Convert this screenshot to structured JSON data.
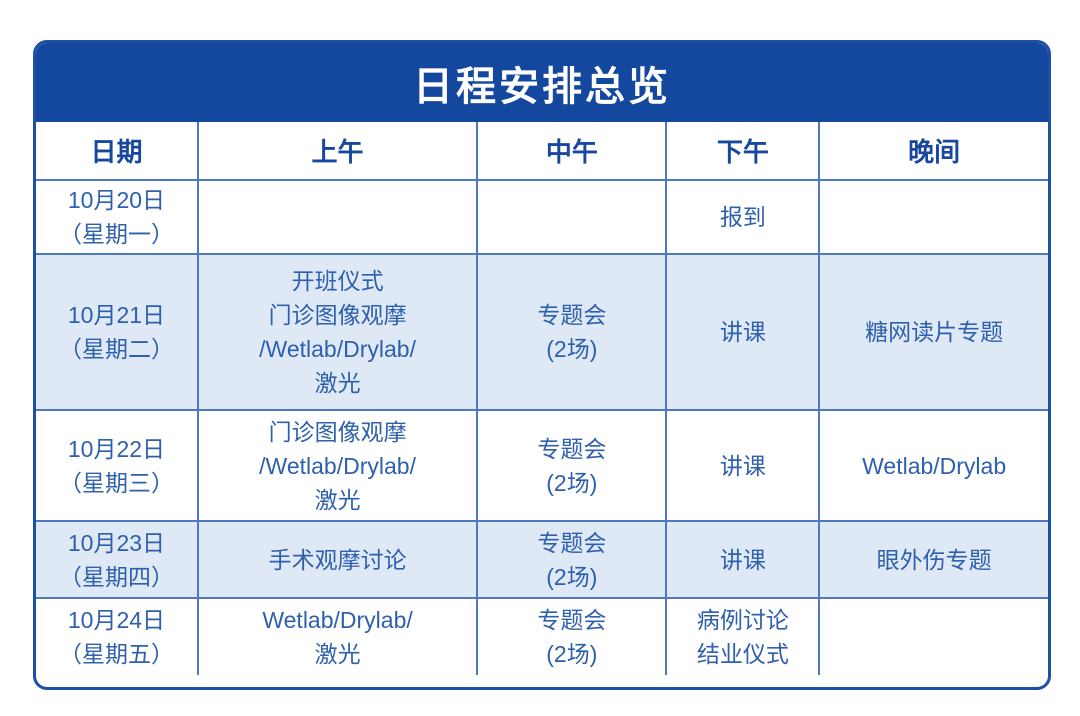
{
  "title": "日程安排总览",
  "colors": {
    "title_bar": "#13489e",
    "outer_border": "#1d4fa4",
    "grid_line": "#4f79bd",
    "header_text": "#17479e",
    "cell_text": "#2e60ae",
    "alt_row_background": "#dfe9f5"
  },
  "table": {
    "columns": [
      "日期",
      "上午",
      "中午",
      "下午",
      "晚间"
    ],
    "rows": [
      {
        "date": "10月20日\n（星期一）",
        "morning": "",
        "noon": "",
        "afternoon": "报到",
        "evening": ""
      },
      {
        "date": "10月21日\n（星期二）",
        "morning": "开班仪式\n门诊图像观摩\n/Wetlab/Drylab/\n激光",
        "noon": "专题会\n(2场)",
        "afternoon": "讲课",
        "evening": "糖网读片专题"
      },
      {
        "date": "10月22日\n（星期三）",
        "morning": "门诊图像观摩\n/Wetlab/Drylab/\n激光",
        "noon": "专题会\n(2场)",
        "afternoon": "讲课",
        "evening": "Wetlab/Drylab"
      },
      {
        "date": "10月23日\n（星期四）",
        "morning": "手术观摩讨论",
        "noon": "专题会\n(2场)",
        "afternoon": "讲课",
        "evening": "眼外伤专题"
      },
      {
        "date": "10月24日\n（星期五）",
        "morning": "Wetlab/Drylab/\n激光",
        "noon": "专题会\n(2场)",
        "afternoon": "病例讨论\n结业仪式",
        "evening": ""
      }
    ]
  }
}
